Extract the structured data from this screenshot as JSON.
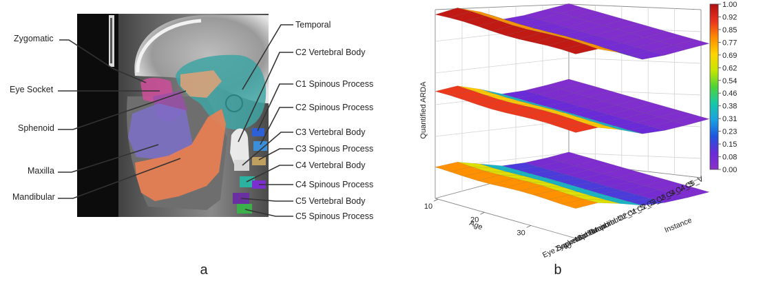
{
  "panel_a": {
    "caption": "a",
    "left_labels": [
      "Zygomatic",
      "Eye Socket",
      "Sphenoid",
      "Maxilla",
      "Mandibular"
    ],
    "right_labels": [
      "Temporal",
      "C2 Vertebral Body",
      "C1 Spinous Process",
      "C2 Spinous Process",
      "C3 Vertebral Body",
      "C3 Spinous Process",
      "C4 Vertebral Body",
      "C4 Spinous Process",
      "C5 Vertebral Body",
      "C5 Spinous Process"
    ],
    "region_colors": {
      "zygomatic": "#d04f9c",
      "eye_socket": "#9a4fa8",
      "sphenoid": "#f2f2f2",
      "maxilla": "#7b70c9",
      "mandibular": "#ef7f52",
      "temporal": "#3fa3a3",
      "vertebrae": [
        "#2d5fd6",
        "#3a8fd8",
        "#2cb3a0",
        "#7b2fd0",
        "#3bb04a",
        "#6a2fa0"
      ]
    }
  },
  "panel_b": {
    "caption": "b",
    "z_axis_label": "Quantified ARDA",
    "x_axis_label": "Age",
    "y_axis_label": "Instance",
    "age_ticks": [
      "10",
      "20",
      "30",
      "40"
    ],
    "instance_ticks": [
      "Eye Socket",
      "Zygomatic",
      "Maxilla",
      "Sphenoid",
      "Temporal",
      "Mandibular",
      "C2_V",
      "C1_S",
      "C2_S",
      "C3_V",
      "C3_S",
      "C4_V",
      "C4_S",
      "C5_V"
    ],
    "colorbar": {
      "ticks": [
        "1.00",
        "0.92",
        "0.85",
        "0.77",
        "0.69",
        "0.62",
        "0.54",
        "0.46",
        "0.38",
        "0.31",
        "0.23",
        "0.15",
        "0.08",
        "0.00"
      ],
      "colors": [
        "#b01010",
        "#e83020",
        "#ff8a00",
        "#ffd400",
        "#c8e600",
        "#4fd33a",
        "#18c8a8",
        "#1aa0e0",
        "#1f55e0",
        "#6a2ad8",
        "#8a2fc8"
      ]
    }
  },
  "chart_data": {
    "type": "surface",
    "series": [
      {
        "name": "surface-top",
        "values": [
          0.97,
          0.97,
          0.6,
          0.1,
          0.03,
          0.03,
          0.02
        ]
      },
      {
        "name": "surface-middle",
        "values": [
          0.9,
          0.88,
          0.55,
          0.15,
          0.05,
          0.03,
          0.03
        ]
      },
      {
        "name": "surface-bottom",
        "values": [
          0.8,
          0.78,
          0.5,
          0.2,
          0.08,
          0.04,
          0.03
        ]
      }
    ],
    "zlabel": "Quantified ARDA",
    "xlabel": "Age",
    "ylabel": "Instance",
    "zlim": [
      0,
      1
    ],
    "grid": true,
    "legend": "colorbar-right"
  }
}
